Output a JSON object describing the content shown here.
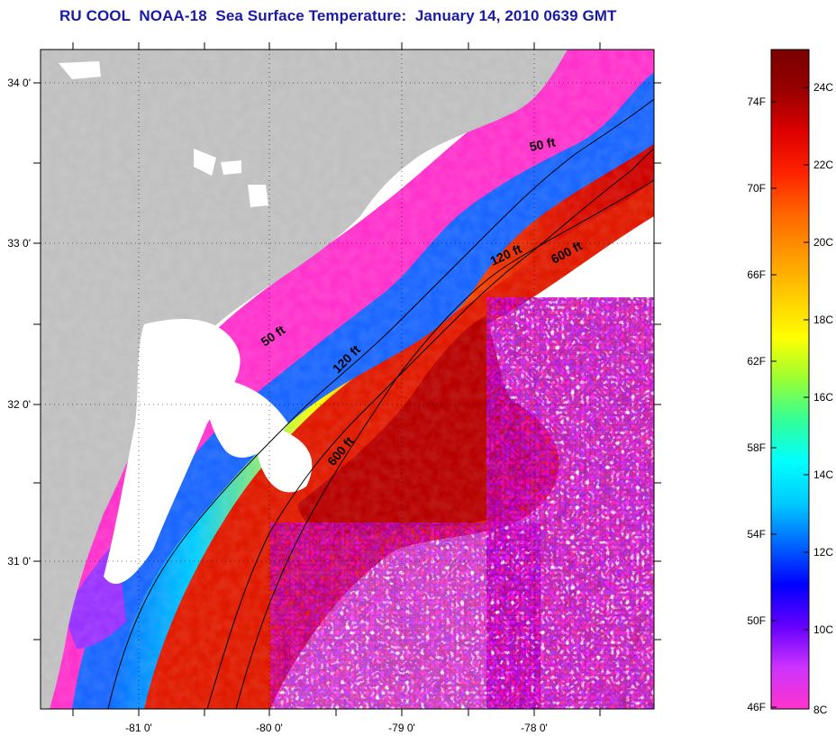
{
  "title": "RU COOL  NOAA-18  Sea Surface Temperature:  January 14, 2010 0639 GMT",
  "map": {
    "lon_ticks": [
      "-81 0'",
      "-80 0'",
      "-79 0'",
      "-78 0'"
    ],
    "lat_ticks": [
      "34 0'",
      "33 0'",
      "32 0'",
      "31 0'"
    ],
    "land_color": "#c0c0c0",
    "cloud_color": "#ffffff",
    "grid": "dotted",
    "contour_labels": [
      "50 ft",
      "50 ft",
      "120 ft",
      "120 ft",
      "600 ft",
      "600 ft"
    ]
  },
  "colorbar": {
    "colors": [
      "#ff33cc",
      "#cc33ff",
      "#6600ff",
      "#0000ff",
      "#0066ff",
      "#00ccff",
      "#00ffff",
      "#33ff99",
      "#99ff33",
      "#ffff00",
      "#ffcc00",
      "#ff9900",
      "#ff6600",
      "#ff2200",
      "#dd0000",
      "#990000",
      "#7a0000"
    ],
    "f_labels": [
      "74F",
      "70F",
      "66F",
      "62F",
      "58F",
      "54F",
      "50F",
      "46F"
    ],
    "c_labels": [
      "24C",
      "22C",
      "20C",
      "18C",
      "16C",
      "14C",
      "12C",
      "10C",
      "8C"
    ]
  }
}
